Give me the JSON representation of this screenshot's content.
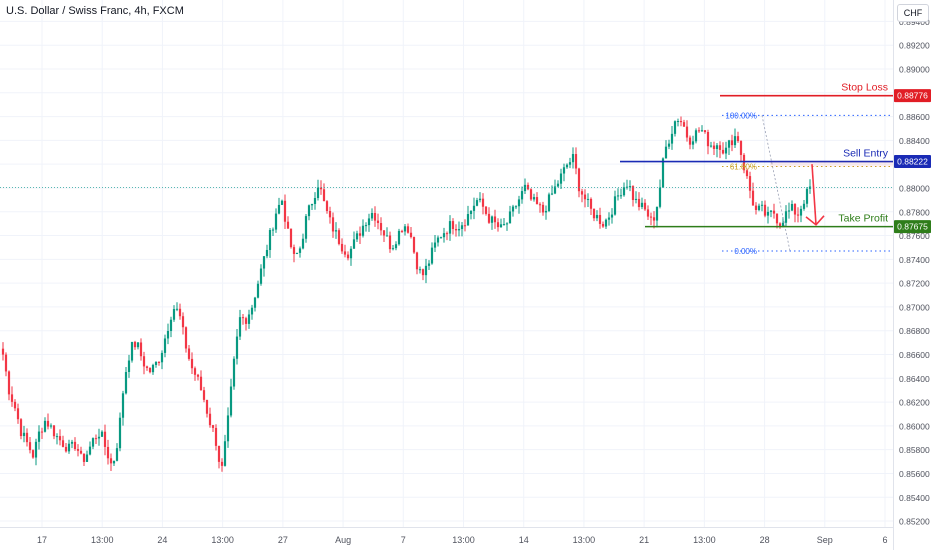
{
  "header": {
    "title": "U.S. Dollar / Swiss Franc, 4h, FXCM",
    "currency": "CHF"
  },
  "colors": {
    "up": "#089981",
    "down": "#f23645",
    "stop": "#e11d25",
    "entry": "#1a2bb5",
    "profit": "#2e7d1a",
    "fib": "#2962ff",
    "fib618": "#c9a227",
    "grid": "#f0f3fa"
  },
  "chart_data": {
    "type": "candlestick",
    "y_ticks": [
      "0.89400",
      "0.89200",
      "0.89000",
      "0.88800",
      "0.88600",
      "0.88400",
      "0.88200",
      "0.88000",
      "0.87800",
      "0.87600",
      "0.87400",
      "0.87200",
      "0.87000",
      "0.86800",
      "0.86600",
      "0.86400",
      "0.86200",
      "0.86000",
      "0.85800",
      "0.85600",
      "0.85400",
      "0.85200"
    ],
    "x_ticks": [
      "17",
      "13:00",
      "24",
      "13:00",
      "27",
      "Aug",
      "7",
      "13:00",
      "14",
      "13:00",
      "21",
      "13:00",
      "28",
      "Sep",
      "6"
    ],
    "ylim": [
      0.8515,
      0.8958
    ],
    "close_path": [
      0.866,
      0.863,
      0.8615,
      0.8595,
      0.8585,
      0.8575,
      0.8595,
      0.8605,
      0.8598,
      0.859,
      0.8585,
      0.858,
      0.8585,
      0.857,
      0.8578,
      0.859,
      0.8595,
      0.858,
      0.8565,
      0.859,
      0.864,
      0.8665,
      0.867,
      0.8655,
      0.8645,
      0.865,
      0.866,
      0.868,
      0.87,
      0.8695,
      0.867,
      0.865,
      0.864,
      0.8625,
      0.8605,
      0.859,
      0.856,
      0.86,
      0.865,
      0.869,
      0.869,
      0.87,
      0.872,
      0.874,
      0.876,
      0.878,
      0.879,
      0.876,
      0.874,
      0.875,
      0.8775,
      0.879,
      0.8805,
      0.8785,
      0.877,
      0.876,
      0.875,
      0.8745,
      0.8755,
      0.8765,
      0.8775,
      0.878,
      0.877,
      0.876,
      0.875,
      0.876,
      0.877,
      0.8765,
      0.874,
      0.8725,
      0.8735,
      0.875,
      0.876,
      0.8765,
      0.877,
      0.8768,
      0.8772,
      0.878,
      0.879,
      0.8785,
      0.8775,
      0.877,
      0.8765,
      0.877,
      0.878,
      0.879,
      0.88,
      0.879,
      0.8785,
      0.878,
      0.879,
      0.88,
      0.881,
      0.882,
      0.8825,
      0.88,
      0.879,
      0.878,
      0.8775,
      0.877,
      0.8778,
      0.879,
      0.88,
      0.8805,
      0.879,
      0.8785,
      0.878,
      0.877,
      0.879,
      0.883,
      0.8845,
      0.886,
      0.8855,
      0.884,
      0.8845,
      0.885,
      0.884,
      0.8835,
      0.8838,
      0.883,
      0.884,
      0.8845,
      0.882,
      0.88,
      0.878,
      0.8782,
      0.8775,
      0.878,
      0.877,
      0.8778,
      0.8782,
      0.8778,
      0.879,
      0.88
    ],
    "annotations": {
      "stop_loss": {
        "label": "Stop Loss",
        "price": 0.88776,
        "price_label": "0.88776"
      },
      "sell_entry": {
        "label": "Sell Entry",
        "price": 0.88222,
        "price_label": "0.88222"
      },
      "take_profit": {
        "label": "Take Profit",
        "price": 0.87675,
        "price_label": "0.87675"
      },
      "fib_100": {
        "label": "100.00%",
        "price": 0.8861
      },
      "fib_618": {
        "label": "61.80%",
        "price": 0.8818
      },
      "fib_0": {
        "label": "0.00%",
        "price": 0.8747
      },
      "current_price": 0.88005
    }
  }
}
